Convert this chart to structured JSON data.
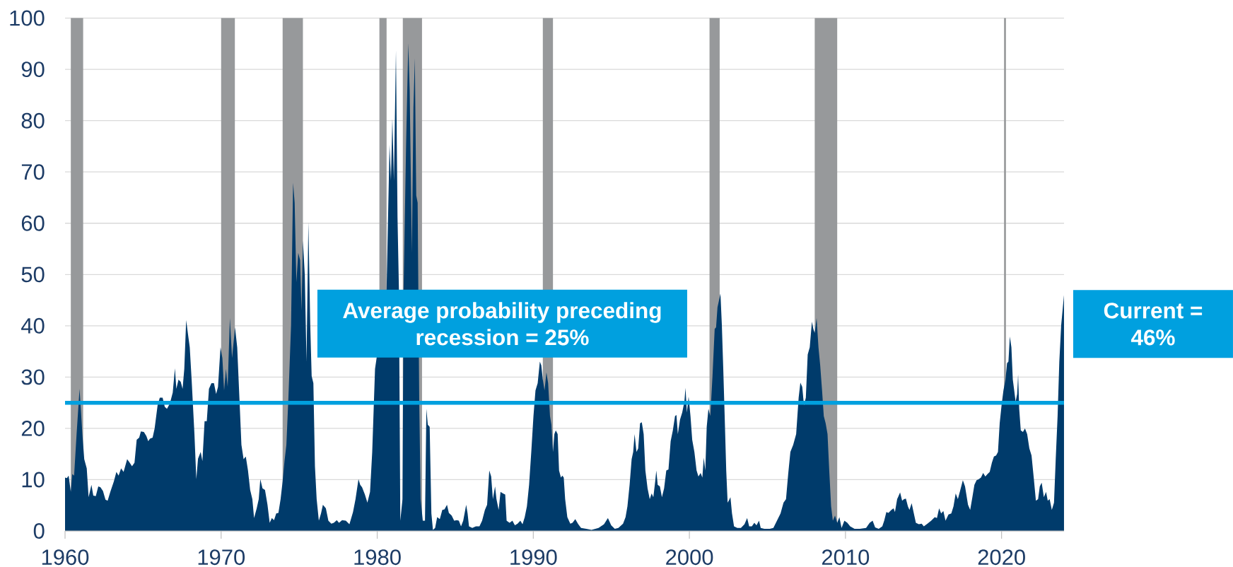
{
  "chart_data": {
    "type": "area",
    "color": "#003b6b",
    "x": [
      1960.0,
      1960.12,
      1960.23,
      1960.37,
      1960.46,
      1960.58,
      1960.74,
      1960.93,
      1961.11,
      1961.23,
      1961.39,
      1961.51,
      1961.69,
      1961.81,
      1961.97,
      1962.13,
      1962.27,
      1962.43,
      1962.59,
      1962.73,
      1962.9,
      1963.13,
      1963.29,
      1963.43,
      1963.59,
      1963.75,
      1963.98,
      1964.12,
      1964.29,
      1964.45,
      1964.59,
      1964.75,
      1964.86,
      1965.05,
      1965.21,
      1965.33,
      1965.44,
      1965.61,
      1965.74,
      1965.93,
      1966.07,
      1966.25,
      1966.39,
      1966.53,
      1966.72,
      1966.9,
      1967.04,
      1967.13,
      1967.27,
      1967.41,
      1967.53,
      1967.64,
      1967.76,
      1967.88,
      1967.99,
      1968.11,
      1968.29,
      1968.41,
      1968.52,
      1968.69,
      1968.8,
      1968.94,
      1969.08,
      1969.22,
      1969.38,
      1969.54,
      1969.68,
      1969.8,
      1969.96,
      1970.08,
      1970.19,
      1970.31,
      1970.42,
      1970.56,
      1970.7,
      1970.89,
      1971.03,
      1971.17,
      1971.3,
      1971.44,
      1971.58,
      1971.72,
      1971.86,
      1972.0,
      1972.11,
      1972.28,
      1972.41,
      1972.51,
      1972.65,
      1972.81,
      1972.97,
      1973.11,
      1973.25,
      1973.39,
      1973.53,
      1973.67,
      1973.81,
      1973.94,
      1974.06,
      1974.18,
      1974.31,
      1974.48,
      1974.61,
      1974.71,
      1974.82,
      1974.94,
      1975.06,
      1975.15,
      1975.24,
      1975.36,
      1975.47,
      1975.59,
      1975.71,
      1975.8,
      1975.91,
      1976.01,
      1976.12,
      1976.26,
      1976.4,
      1976.52,
      1976.71,
      1976.87,
      1977.06,
      1977.22,
      1977.41,
      1977.55,
      1977.75,
      1977.99,
      1978.22,
      1978.45,
      1978.61,
      1978.8,
      1978.91,
      1979.03,
      1979.21,
      1979.37,
      1979.54,
      1979.68,
      1979.77,
      1979.86,
      1980.6,
      1980.79,
      1980.88,
      1980.97,
      1981.07,
      1981.2,
      1981.3,
      1981.39,
      1981.48,
      1981.62,
      1981.69,
      1981.85,
      1981.99,
      1982.08,
      1982.22,
      1982.32,
      1982.41,
      1982.5,
      1982.59,
      1982.69,
      1982.78,
      1982.92,
      1983.06,
      1983.15,
      1983.24,
      1983.36,
      1983.47,
      1983.57,
      1983.71,
      1983.84,
      1984.01,
      1984.17,
      1984.31,
      1984.47,
      1984.59,
      1984.77,
      1984.93,
      1985.1,
      1985.23,
      1985.37,
      1985.51,
      1985.7,
      1985.79,
      1985.88,
      1986.09,
      1986.32,
      1986.55,
      1986.72,
      1986.9,
      1987.04,
      1987.18,
      1987.3,
      1987.41,
      1987.55,
      1987.64,
      1987.78,
      1987.9,
      1988.06,
      1988.2,
      1988.29,
      1988.48,
      1988.66,
      1988.82,
      1988.99,
      1989.17,
      1989.31,
      1989.45,
      1989.59,
      1989.73,
      1989.87,
      1990.01,
      1990.14,
      1990.28,
      1990.42,
      1990.51,
      1990.61,
      1990.72,
      1990.84,
      1990.95,
      1991.07,
      1991.16,
      1991.26,
      1991.35,
      1991.44,
      1991.56,
      1991.65,
      1991.77,
      1991.86,
      1991.95,
      1992.04,
      1992.18,
      1992.37,
      1992.51,
      1992.69,
      1992.88,
      1993.06,
      1993.39,
      1993.73,
      1994.18,
      1994.53,
      1994.78,
      1994.99,
      1995.22,
      1995.45,
      1995.75,
      1995.91,
      1996.03,
      1996.17,
      1996.3,
      1996.4,
      1996.49,
      1996.61,
      1996.72,
      1996.84,
      1996.95,
      1997.07,
      1997.18,
      1997.32,
      1997.46,
      1997.58,
      1997.69,
      1997.81,
      1997.88,
      1997.97,
      1998.11,
      1998.24,
      1998.38,
      1998.52,
      1998.66,
      1998.8,
      1998.94,
      1999.08,
      1999.17,
      1999.26,
      1999.4,
      1999.54,
      1999.68,
      1999.75,
      1999.84,
      1999.95,
      2000.07,
      2000.18,
      2000.32,
      2000.46,
      2000.58,
      2000.72,
      2000.83,
      2000.92,
      2001.02,
      2001.11,
      2001.22,
      2001.34,
      2001.48,
      2001.62,
      2001.71,
      2001.8,
      2001.99,
      2002.08,
      2002.17,
      2002.26,
      2002.36,
      2002.45,
      2002.54,
      2002.63,
      2002.73,
      2002.86,
      2003.07,
      2003.3,
      2003.53,
      2003.7,
      2003.83,
      2004.0,
      2004.16,
      2004.3,
      2004.46,
      2004.57,
      2004.8,
      2005.15,
      2005.38,
      2005.61,
      2005.84,
      2006.03,
      2006.19,
      2006.33,
      2006.47,
      2006.65,
      2006.84,
      2007.0,
      2007.11,
      2007.23,
      2007.34,
      2007.46,
      2007.58,
      2007.71,
      2007.85,
      2007.94,
      2008.03,
      2008.15,
      2008.27,
      2008.38,
      2008.5,
      2008.61,
      2008.73,
      2008.85,
      2008.96,
      2009.08,
      2009.19,
      2009.33,
      2009.47,
      2009.61,
      2009.75,
      2009.93,
      2010.12,
      2010.3,
      2010.58,
      2010.92,
      2011.32,
      2011.55,
      2011.74,
      2011.9,
      2012.13,
      2012.36,
      2012.48,
      2012.62,
      2012.75,
      2012.94,
      2013.08,
      2013.17,
      2013.31,
      2013.5,
      2013.63,
      2013.75,
      2013.87,
      2014.0,
      2014.1,
      2014.24,
      2014.38,
      2014.51,
      2014.7,
      2014.88,
      2015.02,
      2015.25,
      2015.49,
      2015.72,
      2015.86,
      2016.0,
      2016.13,
      2016.27,
      2016.41,
      2016.6,
      2016.78,
      2016.92,
      2017.06,
      2017.2,
      2017.34,
      2017.52,
      2017.66,
      2017.85,
      2017.99,
      2018.13,
      2018.26,
      2018.4,
      2018.54,
      2018.68,
      2018.82,
      2018.96,
      2019.1,
      2019.24,
      2019.38,
      2019.51,
      2019.65,
      2019.77,
      2019.88,
      2020.0,
      2020.12,
      2020.25,
      2020.35,
      2020.44,
      2020.53,
      2020.63,
      2020.72,
      2020.81,
      2020.9,
      2021.0,
      2021.06,
      2021.13,
      2021.23,
      2021.37,
      2021.5,
      2021.64,
      2021.78,
      2021.92,
      2022.06,
      2022.2,
      2022.34,
      2022.45,
      2022.57,
      2022.71,
      2022.85,
      2022.96,
      2023.08,
      2023.22,
      2023.36,
      2023.47,
      2023.59,
      2023.7,
      2023.82,
      2024
    ],
    "values": [
      10.4,
      10.3,
      10.8,
      7.6,
      11.1,
      10.8,
      18.9,
      27.7,
      18.9,
      14.0,
      12.2,
      6.6,
      9.0,
      6.9,
      6.8,
      8.7,
      8.5,
      7.8,
      6.1,
      5.9,
      7.6,
      9.7,
      11.5,
      10.8,
      12.2,
      11.5,
      14.0,
      13.4,
      12.6,
      13.3,
      17.8,
      18.2,
      19.4,
      19.3,
      18.5,
      17.5,
      18.0,
      18.2,
      20.0,
      24.5,
      26.0,
      26.0,
      24.2,
      23.8,
      24.9,
      27.0,
      31.7,
      27.7,
      29.5,
      29.1,
      27.7,
      31.6,
      41.1,
      38.3,
      35.8,
      29.5,
      18.9,
      10.1,
      14.1,
      15.4,
      13.6,
      21.4,
      21.4,
      27.7,
      28.8,
      28.8,
      26.7,
      28.1,
      35.8,
      33.7,
      27.4,
      31.6,
      28.1,
      41.5,
      33.7,
      39.7,
      35.8,
      26.0,
      16.8,
      14.0,
      14.5,
      11.8,
      8.0,
      6.2,
      2.5,
      4.4,
      6.2,
      10.1,
      8.3,
      8.0,
      5.1,
      1.6,
      2.5,
      2.1,
      3.4,
      3.5,
      6.2,
      9.7,
      13.6,
      16.8,
      26.0,
      40.1,
      67.9,
      64.0,
      48.5,
      54.2,
      52.8,
      42.9,
      56.6,
      49.9,
      33.0,
      60.2,
      40.1,
      30.2,
      28.8,
      12.6,
      6.2,
      2.0,
      3.4,
      5.1,
      4.4,
      2.0,
      1.4,
      1.6,
      2.1,
      1.6,
      2.1,
      2.0,
      1.3,
      3.7,
      6.2,
      10.1,
      9.0,
      8.5,
      7.1,
      5.5,
      7.6,
      15.4,
      23.5,
      31.6,
      47.1,
      75.3,
      68.3,
      80.4,
      68.3,
      93.7,
      61.2,
      47.1,
      2.0,
      6.2,
      47.1,
      75.3,
      95.1,
      85.9,
      54.2,
      82.4,
      92.2,
      65.4,
      64.0,
      26.0,
      6.2,
      2.0,
      2.0,
      23.8,
      20.7,
      20.3,
      3.4,
      0.2,
      0.6,
      2.7,
      2.3,
      4.1,
      4.2,
      5.1,
      3.5,
      3.0,
      2.0,
      2.1,
      2.0,
      0.9,
      2.0,
      5.1,
      3.4,
      0.9,
      0.6,
      0.9,
      0.9,
      2.0,
      4.1,
      5.1,
      11.8,
      10.6,
      6.2,
      8.7,
      6.2,
      4.1,
      7.6,
      7.3,
      7.1,
      2.0,
      1.6,
      2.0,
      1.1,
      1.4,
      2.0,
      1.3,
      2.7,
      4.8,
      9.0,
      15.4,
      22.4,
      27.4,
      28.8,
      33.0,
      32.3,
      29.5,
      27.4,
      30.9,
      28.8,
      22.4,
      20.7,
      15.4,
      18.9,
      19.6,
      18.9,
      11.8,
      10.4,
      10.8,
      10.4,
      6.2,
      2.7,
      1.4,
      1.6,
      2.3,
      1.3,
      0.6,
      0.4,
      0.2,
      0.6,
      1.3,
      2.5,
      1.1,
      0.4,
      0.6,
      1.4,
      2.7,
      4.8,
      9.0,
      14.0,
      15.4,
      18.9,
      15.4,
      16.1,
      21.0,
      21.2,
      18.9,
      11.8,
      8.3,
      6.2,
      7.3,
      6.6,
      9.7,
      11.8,
      9.0,
      8.7,
      6.6,
      8.3,
      11.8,
      12.0,
      17.5,
      19.6,
      22.4,
      22.6,
      18.9,
      21.7,
      23.1,
      25.2,
      27.9,
      23.1,
      26.2,
      22.4,
      17.8,
      15.4,
      11.8,
      10.6,
      11.3,
      10.4,
      14.3,
      11.8,
      20.3,
      23.8,
      22.4,
      30.2,
      39.4,
      39.7,
      43.6,
      46.3,
      40.1,
      31.6,
      22.4,
      11.8,
      5.5,
      6.0,
      6.6,
      3.4,
      0.9,
      0.6,
      0.6,
      1.3,
      2.5,
      0.9,
      0.9,
      1.6,
      1.1,
      2.0,
      0.6,
      0.4,
      0.4,
      0.6,
      2.0,
      3.4,
      5.5,
      6.2,
      11.1,
      15.4,
      16.8,
      18.9,
      26.0,
      28.9,
      28.1,
      24.5,
      26.0,
      34.4,
      35.8,
      40.8,
      39.4,
      38.6,
      41.5,
      35.8,
      32.3,
      27.4,
      22.4,
      21.0,
      18.9,
      11.8,
      4.8,
      2.0,
      3.0,
      1.6,
      2.7,
      0.6,
      2.0,
      1.6,
      0.9,
      0.4,
      0.4,
      0.6,
      1.6,
      2.0,
      0.7,
      0.4,
      0.9,
      2.0,
      3.7,
      3.5,
      4.1,
      4.4,
      3.7,
      6.2,
      7.5,
      5.9,
      6.2,
      6.3,
      4.8,
      4.1,
      5.4,
      3.4,
      1.6,
      1.3,
      1.4,
      0.9,
      1.4,
      2.0,
      2.7,
      2.5,
      4.4,
      3.4,
      3.9,
      2.0,
      3.2,
      3.4,
      4.8,
      7.3,
      6.2,
      7.8,
      9.9,
      8.7,
      5.1,
      4.1,
      6.6,
      9.0,
      9.9,
      10.1,
      10.4,
      11.3,
      10.6,
      11.1,
      11.5,
      13.3,
      14.5,
      14.7,
      15.4,
      21.0,
      24.5,
      27.4,
      29.5,
      32.7,
      33.0,
      37.9,
      35.8,
      29.5,
      27.4,
      25.2,
      26.7,
      30.5,
      23.8,
      19.6,
      19.3,
      20.0,
      18.9,
      16.1,
      14.7,
      10.4,
      5.9,
      6.2,
      8.7,
      9.4,
      6.6,
      7.6,
      5.9,
      6.2,
      4.1,
      5.5,
      14.0,
      22.4,
      33.0,
      40.1,
      46
    ],
    "xlim": [
      1960,
      2024
    ],
    "ylim": [
      0,
      100
    ],
    "xticks": [
      1960,
      1970,
      1980,
      1990,
      2000,
      2010,
      2020
    ],
    "yticks": [
      0,
      10,
      20,
      30,
      40,
      50,
      60,
      70,
      80,
      90,
      100
    ],
    "grid": "y",
    "bands": [
      {
        "axis": "x",
        "from": 1960.37,
        "to": 1961.16,
        "color": "#97999b"
      },
      {
        "axis": "x",
        "from": 1970.0,
        "to": 1970.88,
        "color": "#97999b"
      },
      {
        "axis": "x",
        "from": 1973.94,
        "to": 1975.24,
        "color": "#97999b"
      },
      {
        "axis": "x",
        "from": 1980.14,
        "to": 1980.6,
        "color": "#97999b"
      },
      {
        "axis": "x",
        "from": 1981.64,
        "to": 1982.87,
        "color": "#97999b"
      },
      {
        "axis": "x",
        "from": 1990.61,
        "to": 1991.26,
        "color": "#97999b"
      },
      {
        "axis": "x",
        "from": 2001.29,
        "to": 2001.94,
        "color": "#97999b"
      },
      {
        "axis": "x",
        "from": 2008.03,
        "to": 2009.47,
        "color": "#97999b"
      },
      {
        "axis": "x",
        "from": 2020.16,
        "to": 2020.28,
        "color": "#97999b"
      }
    ],
    "ref_lines": [
      {
        "axis": "y",
        "value": 25,
        "label": "Average probability preceding recession = 25%",
        "color": "#00a0df"
      }
    ],
    "annotations": [
      {
        "text": "Current = 46%",
        "x": 2024,
        "y": 46
      }
    ]
  }
}
